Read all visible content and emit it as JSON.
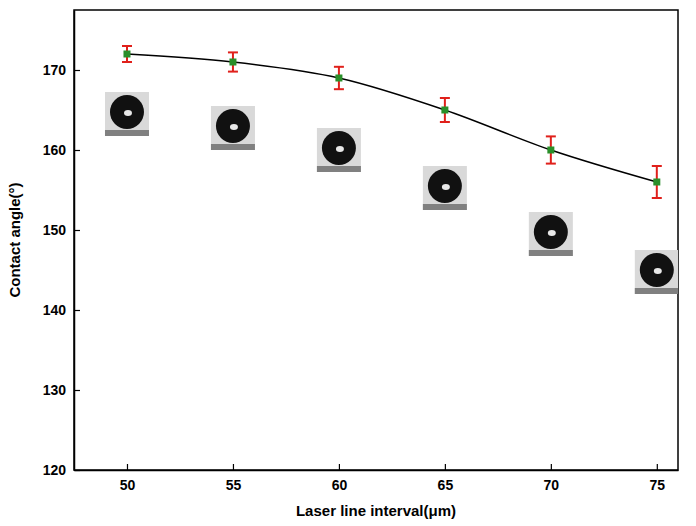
{
  "chart_data": {
    "type": "line",
    "x_label": "Laser line interval(μm)",
    "y_label": "Contact angle(°)",
    "x": [
      50,
      55,
      60,
      65,
      70,
      75
    ],
    "series": [
      {
        "color": "#2a8f2a",
        "marker": "square",
        "line_style": "solid",
        "values": [
          172,
          171,
          169,
          165,
          160,
          156
        ],
        "errors": [
          1,
          1.2,
          1.4,
          1.5,
          1.7,
          2
        ]
      }
    ],
    "xlim": [
      47.5,
      76
    ],
    "xticks": [
      50,
      55,
      60,
      65,
      70,
      75
    ],
    "ylim": [
      120,
      177.5
    ],
    "yticks": [
      120,
      130,
      140,
      150,
      160,
      170
    ],
    "grid": false
  }
}
